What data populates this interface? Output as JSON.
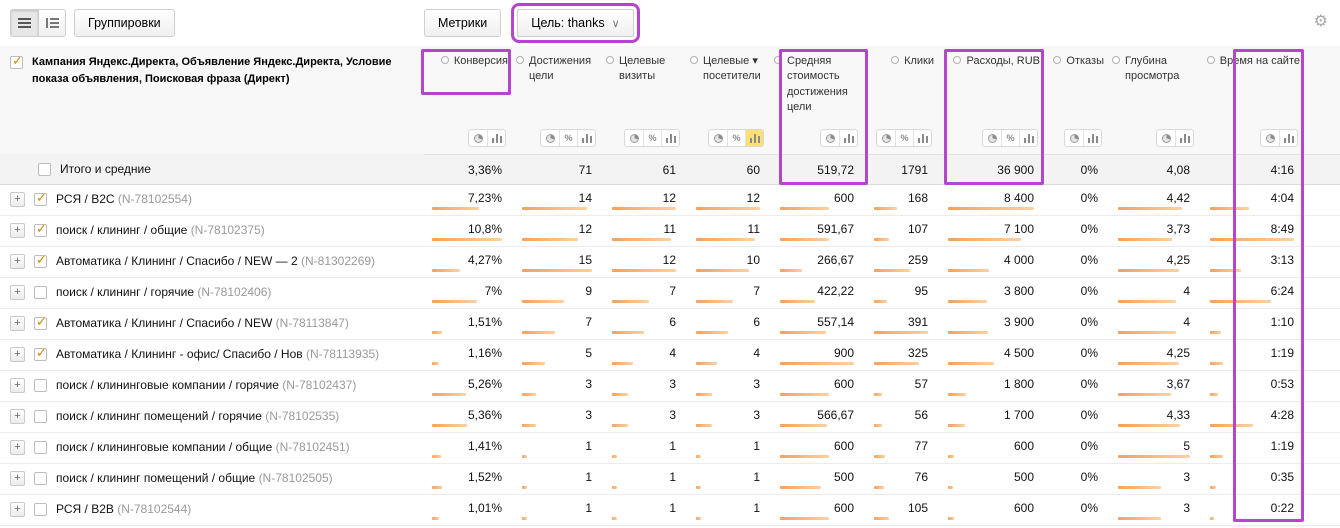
{
  "icons": {
    "gear": "⚙",
    "chevron_down": "∨",
    "plus": "+",
    "check": "✓",
    "sort_desc": "▾"
  },
  "toolbar": {
    "groupings_label": "Группировки",
    "metrics_label": "Метрики",
    "goal_label": "Цель: thanks"
  },
  "annotations": {
    "color": "#b545cc",
    "boxes": [
      "goal-selector",
      "conversion-column-header",
      "avg-goal-cost-column",
      "expenses-column",
      "time-on-site-column"
    ]
  },
  "table": {
    "dimension_header": "Кампания Яндекс.Директа, Объявление Яндекс.Директа, Условие показа объявления, Поисковая фраза (Директ)",
    "columns": [
      {
        "key": "conversion",
        "label": "Конверсия",
        "icons": [
          "pie",
          "bars"
        ]
      },
      {
        "key": "goal-reaches",
        "label": "Достижения цели",
        "icons": [
          "pie",
          "pct",
          "bars"
        ]
      },
      {
        "key": "goal-visits",
        "label": "Целевые визиты",
        "icons": [
          "pie",
          "pct",
          "bars"
        ]
      },
      {
        "key": "goal-visitors",
        "label": "Целевые посетители",
        "icons": [
          "pie",
          "pct",
          "bars"
        ],
        "sorted": true,
        "active_icon": "bars"
      },
      {
        "key": "avg-goal-cost",
        "label": "Средняя стоимость достижения цели",
        "icons": [
          "pie",
          "bars"
        ]
      },
      {
        "key": "clicks",
        "label": "Клики",
        "icons": [
          "pie",
          "pct",
          "bars"
        ]
      },
      {
        "key": "expenses",
        "label": "Расходы, RUB",
        "icons": [
          "pie",
          "pct",
          "bars"
        ]
      },
      {
        "key": "bounces",
        "label": "Отказы",
        "icons": [
          "pie",
          "bars"
        ]
      },
      {
        "key": "depth",
        "label": "Глубина просмотра",
        "icons": [
          "pie",
          "bars"
        ]
      },
      {
        "key": "time-on-site",
        "label": "Время на сайте",
        "icons": [
          "pie",
          "bars"
        ]
      }
    ],
    "totals_row": {
      "label": "Итого и средние",
      "values": [
        "3,36%",
        "71",
        "61",
        "60",
        "519,72",
        "1791",
        "36 900",
        "0%",
        "4,08",
        "4:16"
      ]
    },
    "rows": [
      {
        "name": "РСЯ / B2C",
        "id": "N-78102554",
        "checked": true,
        "values": [
          "7,23%",
          "14",
          "12",
          "12",
          "600",
          "168",
          "8 400",
          "0%",
          "4,42",
          "4:04"
        ]
      },
      {
        "name": "поиск / клининг / общие",
        "id": "N-78102375",
        "checked": true,
        "values": [
          "10,8%",
          "12",
          "11",
          "11",
          "591,67",
          "107",
          "7 100",
          "0%",
          "3,73",
          "8:49"
        ]
      },
      {
        "name": "Автоматика / Клининг / Спасибо / NEW — 2",
        "id": "N-81302269",
        "checked": true,
        "values": [
          "4,27%",
          "15",
          "12",
          "10",
          "266,67",
          "259",
          "4 000",
          "0%",
          "4,25",
          "3:13"
        ]
      },
      {
        "name": "поиск / клининг / горячие",
        "id": "N-78102406",
        "checked": false,
        "values": [
          "7%",
          "9",
          "7",
          "7",
          "422,22",
          "95",
          "3 800",
          "0%",
          "4",
          "6:24"
        ]
      },
      {
        "name": "Автоматика / Клининг / Спасибо / NEW",
        "id": "N-78113847",
        "checked": true,
        "values": [
          "1,51%",
          "7",
          "6",
          "6",
          "557,14",
          "391",
          "3 900",
          "0%",
          "4",
          "1:10"
        ]
      },
      {
        "name": "Автоматика / Клининг - офис/ Спасибо / Нов",
        "id": "N-78113935",
        "checked": true,
        "values": [
          "1,16%",
          "5",
          "4",
          "4",
          "900",
          "325",
          "4 500",
          "0%",
          "4,25",
          "1:19"
        ]
      },
      {
        "name": "поиск / клининговые компании / горячие",
        "id": "N-78102437",
        "checked": false,
        "values": [
          "5,26%",
          "3",
          "3",
          "3",
          "600",
          "57",
          "1 800",
          "0%",
          "3,67",
          "0:53"
        ]
      },
      {
        "name": "поиск / клининг помещений / горячие",
        "id": "N-78102535",
        "checked": false,
        "values": [
          "5,36%",
          "3",
          "3",
          "3",
          "566,67",
          "56",
          "1 700",
          "0%",
          "4,33",
          "4:28"
        ]
      },
      {
        "name": "поиск / клининговые компании / общие",
        "id": "N-78102451",
        "checked": false,
        "values": [
          "1,41%",
          "1",
          "1",
          "1",
          "600",
          "77",
          "600",
          "0%",
          "5",
          "1:19"
        ]
      },
      {
        "name": "поиск / клининг помещений / общие",
        "id": "N-78102505",
        "checked": false,
        "values": [
          "1,52%",
          "1",
          "1",
          "1",
          "500",
          "76",
          "500",
          "0%",
          "3",
          "0:35"
        ]
      },
      {
        "name": "РСЯ / B2B",
        "id": "N-78102544",
        "checked": false,
        "values": [
          "1,01%",
          "1",
          "1",
          "1",
          "600",
          "105",
          "600",
          "0%",
          "3",
          "0:22"
        ]
      }
    ]
  }
}
